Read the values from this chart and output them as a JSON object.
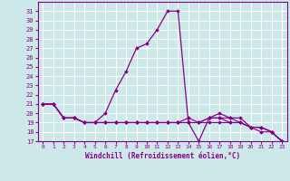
{
  "xlabel": "Windchill (Refroidissement éolien,°C)",
  "ylabel": "",
  "background_color": "#cce8e8",
  "grid_color": "#ffffff",
  "line_color": "#880088",
  "xlim": [
    -0.5,
    23.5
  ],
  "ylim": [
    17,
    32
  ],
  "xticks": [
    0,
    1,
    2,
    3,
    4,
    5,
    6,
    7,
    8,
    9,
    10,
    11,
    12,
    13,
    14,
    15,
    16,
    17,
    18,
    19,
    20,
    21,
    22,
    23
  ],
  "yticks": [
    17,
    18,
    19,
    20,
    21,
    22,
    23,
    24,
    25,
    26,
    27,
    28,
    29,
    30,
    31
  ],
  "line1_x": [
    0,
    1,
    2,
    3,
    4,
    5,
    6,
    7,
    8,
    9,
    10,
    11,
    12,
    13,
    14,
    15,
    16,
    17,
    18,
    19,
    20,
    21,
    22,
    23
  ],
  "line1_y": [
    21,
    21,
    19.5,
    19.5,
    19,
    19,
    20,
    22.5,
    24.5,
    27,
    27.5,
    29,
    31,
    31,
    19,
    17,
    19.5,
    20,
    19.5,
    19.5,
    18.5,
    18.5,
    18,
    17
  ],
  "line2_x": [
    0,
    1,
    2,
    3,
    4,
    5,
    6,
    7,
    8,
    9,
    10,
    11,
    12,
    13,
    14,
    15,
    16,
    17,
    18,
    19,
    20,
    21,
    22,
    23
  ],
  "line2_y": [
    21,
    21,
    19.5,
    19.5,
    19,
    19,
    19,
    19,
    19,
    19,
    19,
    19,
    19,
    19,
    19,
    19,
    19,
    19,
    19,
    19,
    18.5,
    18.5,
    18,
    17
  ],
  "line3_x": [
    0,
    1,
    2,
    3,
    4,
    5,
    6,
    7,
    8,
    9,
    10,
    11,
    12,
    13,
    14,
    15,
    16,
    17,
    18,
    19,
    20,
    21,
    22,
    23
  ],
  "line3_y": [
    21,
    21,
    19.5,
    19.5,
    19,
    19,
    19,
    19,
    19,
    19,
    19,
    19,
    19,
    19,
    19.5,
    19,
    19.5,
    19.5,
    19,
    19,
    18.5,
    18.5,
    18,
    17
  ],
  "line4_x": [
    0,
    1,
    2,
    3,
    4,
    5,
    6,
    7,
    8,
    9,
    10,
    11,
    12,
    13,
    14,
    15,
    16,
    17,
    18,
    19,
    20,
    21,
    22,
    23
  ],
  "line4_y": [
    21,
    21,
    19.5,
    19.5,
    19,
    19,
    19,
    19,
    19,
    19,
    19,
    19,
    19,
    19,
    19,
    19,
    19.5,
    19.5,
    19.5,
    19,
    18.5,
    18,
    18,
    17
  ]
}
